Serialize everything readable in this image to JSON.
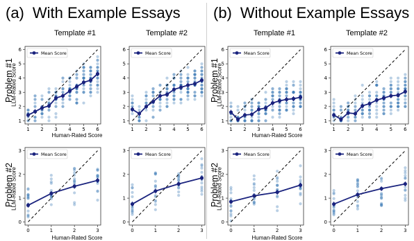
{
  "groups": [
    {
      "letter": "(a)",
      "title": "With Example Essays"
    },
    {
      "letter": "(b)",
      "title": "Without Example Essays"
    }
  ],
  "column_titles": [
    "Template #1",
    "Template #2",
    "Template #1",
    "Template #2"
  ],
  "row_titles": [
    "Problem #1",
    "Problem #2"
  ],
  "axis_labels": {
    "x": "Human-Rated Score",
    "y": "LLM-Rated Score"
  },
  "legend_label": "Mean Score",
  "colors": {
    "mean": "#1a237e",
    "points": "#3a78b5",
    "diagonal": "#000000"
  },
  "chart_data": [
    {
      "type": "line",
      "group": "With Example Essays",
      "template": "Template #1",
      "problem": "Problem #1",
      "xlabel": "Human-Rated Score",
      "ylabel": "LLM-Rated Score",
      "x": [
        1,
        1.5,
        2,
        2.5,
        3,
        3.5,
        4,
        4.5,
        5,
        5.5,
        6
      ],
      "mean": [
        1.4,
        1.65,
        1.9,
        2.05,
        2.6,
        2.75,
        3.1,
        3.4,
        3.7,
        3.85,
        4.3
      ],
      "xlim": [
        1,
        6
      ],
      "ylim": [
        1,
        6
      ],
      "xticks": [
        1,
        2,
        3,
        4,
        5,
        6
      ],
      "yticks": [
        1,
        2,
        3,
        4,
        5,
        6
      ],
      "diagonal": true,
      "legend": "top-left",
      "legend_entries": [
        "Mean Score"
      ]
    },
    {
      "type": "line",
      "group": "With Example Essays",
      "template": "Template #2",
      "problem": "Problem #1",
      "xlabel": "Human-Rated Score",
      "ylabel": "LLM-Rated Score",
      "x": [
        1,
        1.5,
        2,
        2.5,
        3,
        3.5,
        4,
        4.5,
        5,
        5.5,
        6
      ],
      "mean": [
        1.8,
        1.5,
        2.0,
        2.35,
        2.75,
        2.85,
        3.2,
        3.35,
        3.5,
        3.6,
        3.85
      ],
      "xlim": [
        1,
        6
      ],
      "ylim": [
        1,
        6
      ],
      "xticks": [
        1,
        2,
        3,
        4,
        5,
        6
      ],
      "yticks": [
        1,
        2,
        3,
        4,
        5,
        6
      ],
      "diagonal": true,
      "legend": "top-left",
      "legend_entries": [
        "Mean Score"
      ]
    },
    {
      "type": "line",
      "group": "Without Example Essays",
      "template": "Template #1",
      "problem": "Problem #1",
      "xlabel": "Human-Rated Score",
      "ylabel": "LLM-Rated Score",
      "x": [
        1,
        1.5,
        2,
        2.5,
        3,
        3.5,
        4,
        4.5,
        5,
        5.5,
        6
      ],
      "mean": [
        1.6,
        1.1,
        1.4,
        1.45,
        1.8,
        1.9,
        2.25,
        2.4,
        2.5,
        2.55,
        2.65
      ],
      "xlim": [
        1,
        6
      ],
      "ylim": [
        1,
        6
      ],
      "xticks": [
        1,
        2,
        3,
        4,
        5,
        6
      ],
      "yticks": [
        1,
        2,
        3,
        4,
        5,
        6
      ],
      "diagonal": true,
      "legend": "top-left",
      "legend_entries": [
        "Mean Score"
      ]
    },
    {
      "type": "line",
      "group": "Without Example Essays",
      "template": "Template #2",
      "problem": "Problem #1",
      "xlabel": "Human-Rated Score",
      "ylabel": "LLM-Rated Score",
      "x": [
        1,
        1.5,
        2,
        2.5,
        3,
        3.5,
        4,
        4.5,
        5,
        5.5,
        6
      ],
      "mean": [
        1.4,
        1.1,
        1.55,
        1.5,
        2.05,
        2.2,
        2.45,
        2.6,
        2.75,
        2.8,
        3.05
      ],
      "xlim": [
        1,
        6
      ],
      "ylim": [
        1,
        6
      ],
      "xticks": [
        1,
        2,
        3,
        4,
        5,
        6
      ],
      "yticks": [
        1,
        2,
        3,
        4,
        5,
        6
      ],
      "diagonal": true,
      "legend": "top-left",
      "legend_entries": [
        "Mean Score"
      ]
    },
    {
      "type": "line",
      "group": "With Example Essays",
      "template": "Template #1",
      "problem": "Problem #2",
      "xlabel": "Human-Rated Score",
      "ylabel": "LLM-Rated Score",
      "x": [
        0,
        1,
        2,
        3
      ],
      "mean": [
        0.7,
        1.2,
        1.5,
        1.75
      ],
      "xlim": [
        0,
        3
      ],
      "ylim": [
        0,
        3
      ],
      "xticks": [
        0,
        1,
        2,
        3
      ],
      "yticks": [
        0,
        1,
        2,
        3
      ],
      "diagonal": true,
      "legend": "top-left",
      "legend_entries": [
        "Mean Score"
      ]
    },
    {
      "type": "line",
      "group": "With Example Essays",
      "template": "Template #2",
      "problem": "Problem #2",
      "xlabel": "Human-Rated Score",
      "ylabel": "LLM-Rated Score",
      "x": [
        0,
        1,
        2,
        3
      ],
      "mean": [
        0.75,
        1.3,
        1.6,
        1.85
      ],
      "xlim": [
        0,
        3
      ],
      "ylim": [
        0,
        3
      ],
      "xticks": [
        0,
        1,
        2,
        3
      ],
      "yticks": [
        0,
        1,
        2,
        3
      ],
      "diagonal": true,
      "legend": "top-left",
      "legend_entries": [
        "Mean Score"
      ]
    },
    {
      "type": "line",
      "group": "Without Example Essays",
      "template": "Template #1",
      "problem": "Problem #2",
      "xlabel": "Human-Rated Score",
      "ylabel": "LLM-Rated Score",
      "x": [
        0,
        1,
        2,
        3
      ],
      "mean": [
        0.85,
        1.1,
        1.25,
        1.55
      ],
      "xlim": [
        0,
        3
      ],
      "ylim": [
        0,
        3
      ],
      "xticks": [
        0,
        1,
        2,
        3
      ],
      "yticks": [
        0,
        1,
        2,
        3
      ],
      "diagonal": true,
      "legend": "top-left",
      "legend_entries": [
        "Mean Score"
      ]
    },
    {
      "type": "line",
      "group": "Without Example Essays",
      "template": "Template #2",
      "problem": "Problem #2",
      "xlabel": "Human-Rated Score",
      "ylabel": "LLM-Rated Score",
      "x": [
        0,
        1,
        2,
        3
      ],
      "mean": [
        0.75,
        1.15,
        1.4,
        1.6
      ],
      "xlim": [
        0,
        3
      ],
      "ylim": [
        0,
        3
      ],
      "xticks": [
        0,
        1,
        2,
        3
      ],
      "yticks": [
        0,
        1,
        2,
        3
      ],
      "diagonal": true,
      "legend": "top-left",
      "legend_entries": [
        "Mean Score"
      ]
    }
  ]
}
